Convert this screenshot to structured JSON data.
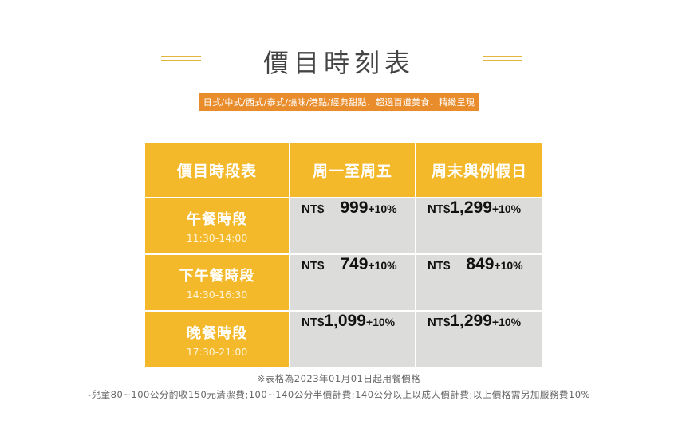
{
  "title": "價目時刻表",
  "tagline": "日式/中式/西式/泰式/燒味/港點/經典甜點．超過百道美食．精緻呈現",
  "table": {
    "headers": [
      "價目時段表",
      "周一至周五",
      "周末與例假日"
    ],
    "rows": [
      {
        "name": "午餐時段",
        "time": "11:30-14:00",
        "weekday": {
          "currency": "NT$",
          "amount": "999",
          "service": "+10%"
        },
        "weekend": {
          "currency": "NT$",
          "amount": "1,299",
          "service": "+10%"
        }
      },
      {
        "name": "下午餐時段",
        "time": "14:30-16:30",
        "weekday": {
          "currency": "NT$",
          "amount": "749",
          "service": "+10%"
        },
        "weekend": {
          "currency": "NT$",
          "amount": "849",
          "service": "+10%"
        }
      },
      {
        "name": "晚餐時段",
        "time": "17:30-21:00",
        "weekday": {
          "currency": "NT$",
          "amount": "1,099",
          "service": "+10%"
        },
        "weekend": {
          "currency": "NT$",
          "amount": "1,299",
          "service": "+10%"
        }
      }
    ]
  },
  "notes": {
    "effective": "※表格為2023年01月01日起用餐價格",
    "children": "-兒童80~100公分酌收150元清潔費;100~140公分半價計費;140公分以上以成人價計費;以上價格需另加服務費10%"
  },
  "colors": {
    "header": "#f3b92a",
    "price_cell": "#dcdcda",
    "tagline_bg": "#e98c2b",
    "deco_line": "#e3b53a"
  }
}
